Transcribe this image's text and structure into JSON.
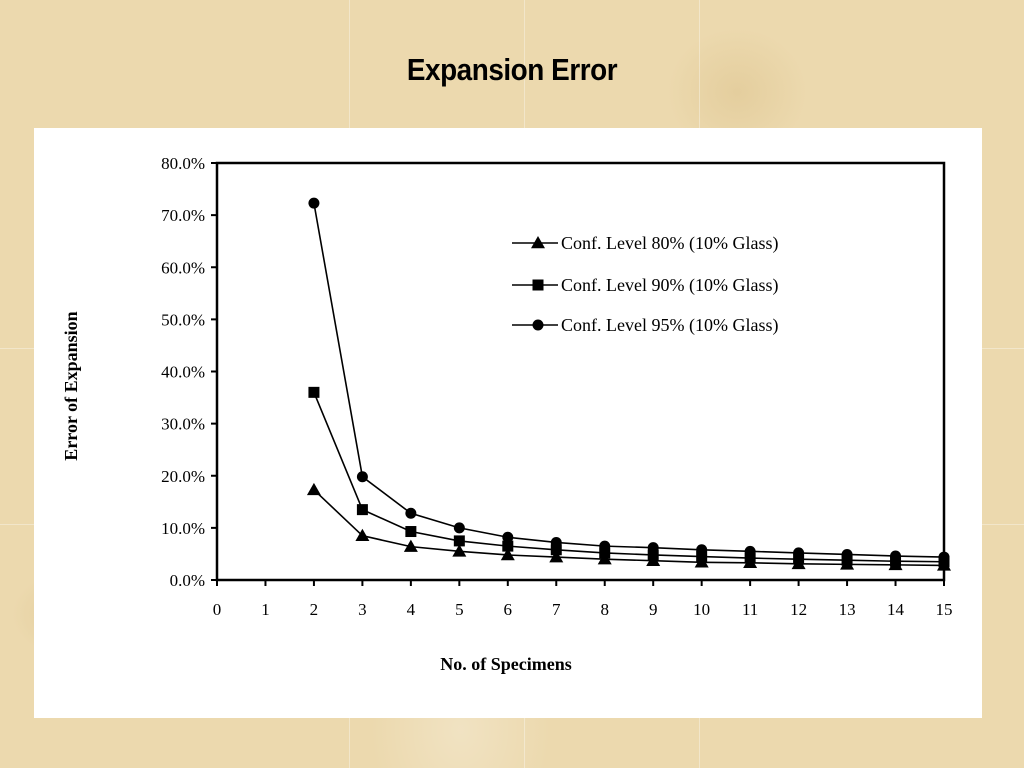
{
  "slide": {
    "title": "Expansion Error"
  },
  "chart_data": {
    "type": "line",
    "title": "",
    "xlabel": "No. of Specimens",
    "ylabel": "Error of Expansion",
    "xlim": [
      0,
      15
    ],
    "ylim": [
      0,
      80
    ],
    "x_ticks": [
      0,
      1,
      2,
      3,
      4,
      5,
      6,
      7,
      8,
      9,
      10,
      11,
      12,
      13,
      14,
      15
    ],
    "y_ticks": [
      0,
      10,
      20,
      30,
      40,
      50,
      60,
      70,
      80
    ],
    "y_tick_labels": [
      "0.0%",
      "10.0%",
      "20.0%",
      "30.0%",
      "40.0%",
      "50.0%",
      "60.0%",
      "70.0%",
      "80.0%"
    ],
    "grid": false,
    "legend_position": "top-right",
    "x": [
      2,
      3,
      4,
      5,
      6,
      7,
      8,
      9,
      10,
      11,
      12,
      13,
      14,
      15
    ],
    "series": [
      {
        "name": "Conf. Level 80% (10% Glass)",
        "marker": "triangle",
        "values": [
          17.3,
          8.5,
          6.4,
          5.5,
          4.8,
          4.4,
          4.0,
          3.7,
          3.4,
          3.3,
          3.1,
          3.0,
          2.9,
          2.8
        ]
      },
      {
        "name": "Conf. Level 90% (10% Glass)",
        "marker": "square",
        "values": [
          36.0,
          13.5,
          9.3,
          7.5,
          6.5,
          5.8,
          5.2,
          4.8,
          4.5,
          4.2,
          4.0,
          3.8,
          3.6,
          3.5
        ]
      },
      {
        "name": "Conf. Level 95% (10% Glass)",
        "marker": "circle",
        "values": [
          72.3,
          19.8,
          12.8,
          10.0,
          8.2,
          7.2,
          6.5,
          6.2,
          5.8,
          5.5,
          5.2,
          4.9,
          4.6,
          4.4
        ]
      }
    ],
    "colors": {
      "line": "#000000",
      "background": "#ffffff"
    }
  }
}
